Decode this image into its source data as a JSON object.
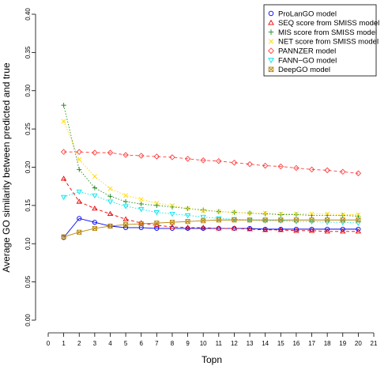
{
  "chart_data": {
    "type": "line",
    "title": "",
    "xlabel": "Topn",
    "ylabel": "Average GO similarity between predicted and true",
    "x": [
      1,
      2,
      3,
      4,
      5,
      6,
      7,
      8,
      9,
      10,
      11,
      12,
      13,
      14,
      15,
      16,
      17,
      18,
      19,
      20
    ],
    "xlim": [
      0,
      21
    ],
    "ylim": [
      0,
      0.4
    ],
    "xticks": [
      "0",
      "1",
      "2",
      "3",
      "4",
      "5",
      "6",
      "7",
      "8",
      "9",
      "10",
      "11",
      "12",
      "13",
      "14",
      "15",
      "16",
      "17",
      "18",
      "19",
      "20",
      "21"
    ],
    "yticks": [
      "0.00",
      "0.05",
      "0.10",
      "0.15",
      "0.20",
      "0.25",
      "0.30",
      "0.35",
      "0.40"
    ],
    "grid": false,
    "legend_position": "top-right",
    "series": [
      {
        "name": "ProLanGO model",
        "color": "#0000ee",
        "marker": "circle",
        "dash": "solid",
        "values": [
          0.108,
          0.133,
          0.128,
          0.123,
          0.121,
          0.121,
          0.12,
          0.12,
          0.12,
          0.12,
          0.12,
          0.12,
          0.12,
          0.119,
          0.119,
          0.119,
          0.119,
          0.119,
          0.119,
          0.119
        ]
      },
      {
        "name": "SEQ score from SMISS model",
        "color": "#ee0000",
        "marker": "triangle-up",
        "dash": "dashed",
        "values": [
          0.185,
          0.155,
          0.146,
          0.139,
          0.132,
          0.127,
          0.124,
          0.122,
          0.121,
          0.121,
          0.12,
          0.12,
          0.119,
          0.118,
          0.118,
          0.117,
          0.117,
          0.116,
          0.116,
          0.116
        ]
      },
      {
        "name": "MIS score from SMISS model",
        "color": "#228b22",
        "marker": "plus",
        "dash": "dotted",
        "values": [
          0.281,
          0.197,
          0.173,
          0.162,
          0.155,
          0.152,
          0.15,
          0.148,
          0.146,
          0.144,
          0.142,
          0.141,
          0.14,
          0.139,
          0.138,
          0.138,
          0.137,
          0.137,
          0.137,
          0.136
        ]
      },
      {
        "name": "NET score from SMISS model",
        "color": "#ffd700",
        "marker": "cross",
        "dash": "dotted",
        "values": [
          0.26,
          0.21,
          0.188,
          0.172,
          0.163,
          0.158,
          0.153,
          0.15,
          0.146,
          0.143,
          0.142,
          0.141,
          0.14,
          0.14,
          0.139,
          0.139,
          0.139,
          0.139,
          0.138,
          0.138
        ]
      },
      {
        "name": "PANNZER model",
        "color": "#ff4040",
        "marker": "diamond",
        "dash": "dashed",
        "values": [
          0.22,
          0.22,
          0.219,
          0.219,
          0.216,
          0.215,
          0.214,
          0.213,
          0.211,
          0.209,
          0.208,
          0.206,
          0.204,
          0.202,
          0.201,
          0.199,
          0.197,
          0.196,
          0.194,
          0.192
        ]
      },
      {
        "name": "FANN−GO model",
        "color": "#00e5ee",
        "marker": "triangle-down",
        "dash": "dotted",
        "values": [
          0.161,
          0.168,
          0.163,
          0.155,
          0.149,
          0.145,
          0.141,
          0.139,
          0.137,
          0.135,
          0.133,
          0.132,
          0.131,
          0.13,
          0.13,
          0.129,
          0.129,
          0.128,
          0.128,
          0.127
        ]
      },
      {
        "name": "DeepGO model",
        "color": "#b8860b",
        "marker": "square-x",
        "dash": "solid",
        "values": [
          0.109,
          0.115,
          0.12,
          0.123,
          0.125,
          0.126,
          0.127,
          0.128,
          0.129,
          0.13,
          0.131,
          0.131,
          0.131,
          0.131,
          0.131,
          0.131,
          0.131,
          0.131,
          0.131,
          0.131
        ]
      }
    ]
  }
}
